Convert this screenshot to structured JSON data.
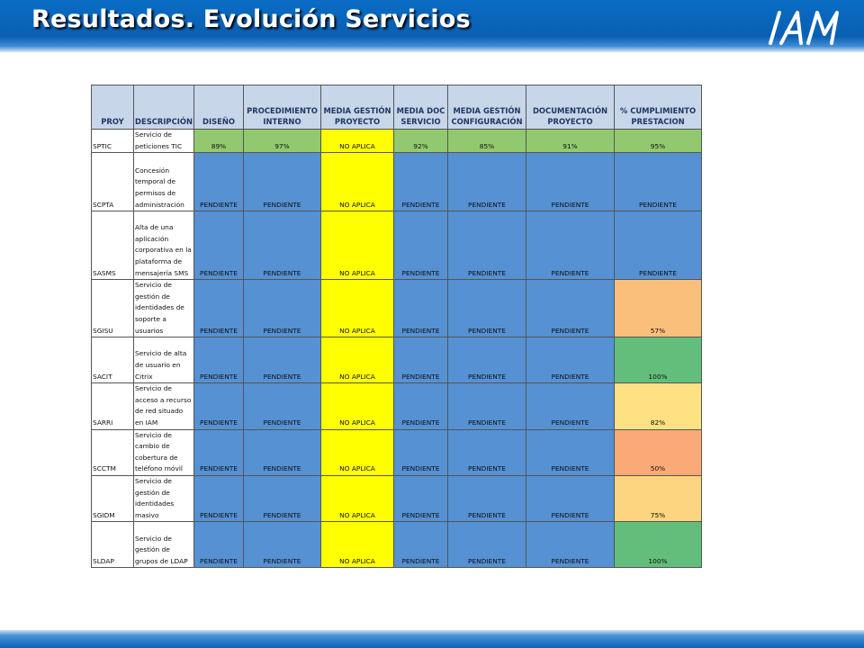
{
  "slide": {
    "title": "Resultados. Evolución Servicios",
    "logo_text": "IAM"
  },
  "table": {
    "headers": [
      "PROY",
      "DESCRIPCIÓN",
      "DISEÑO",
      "PROCEDIMIENTO INTERNO",
      "MEDIA GESTIÓN PROYECTO",
      "MEDIA DOC SERVICIO",
      "MEDIA GESTIÓN CONFIGURACIÓN",
      "DOCUMENTACIÓN PROYECTO",
      "% CUMPLIMIENTO PRESTACION"
    ],
    "rows": [
      {
        "proy": "SPTIC",
        "desc": "Servicio de peticiones TIC",
        "values": [
          "89%",
          "97%",
          "NO APLICA",
          "92%",
          "85%",
          "91%",
          "95%"
        ],
        "colors": [
          "#92c970",
          "#92c970",
          "#ffff00",
          "#92c970",
          "#92c970",
          "#92c970",
          "#92c970"
        ]
      },
      {
        "proy": "SCPTA",
        "desc": "Concesión temporal de permisos de administración",
        "values": [
          "PENDIENTE",
          "PENDIENTE",
          "NO APLICA",
          "PENDIENTE",
          "PENDIENTE",
          "PENDIENTE",
          "PENDIENTE"
        ],
        "colors": [
          "#5591d3",
          "#5591d3",
          "#ffff00",
          "#5591d3",
          "#5591d3",
          "#5591d3",
          "#5591d3"
        ]
      },
      {
        "proy": "SASMS",
        "desc": "Alta de una aplicación corporativa en la plataforma de mensajería SMS",
        "values": [
          "PENDIENTE",
          "PENDIENTE",
          "NO APLICA",
          "PENDIENTE",
          "PENDIENTE",
          "PENDIENTE",
          "PENDIENTE"
        ],
        "colors": [
          "#5591d3",
          "#5591d3",
          "#ffff00",
          "#5591d3",
          "#5591d3",
          "#5591d3",
          "#5591d3"
        ]
      },
      {
        "proy": "SGISU",
        "desc": "Servicio de gestión de identidades de soporte a usuarios",
        "values": [
          "PENDIENTE",
          "PENDIENTE",
          "NO APLICA",
          "PENDIENTE",
          "PENDIENTE",
          "PENDIENTE",
          "57%"
        ],
        "colors": [
          "#5591d3",
          "#5591d3",
          "#ffff00",
          "#5591d3",
          "#5591d3",
          "#5591d3",
          "#fbbf7c"
        ]
      },
      {
        "proy": "SACIT",
        "desc": "Servicio de alta de usuario en Citrix",
        "values": [
          "PENDIENTE",
          "PENDIENTE",
          "NO APLICA",
          "PENDIENTE",
          "PENDIENTE",
          "PENDIENTE",
          "100%"
        ],
        "colors": [
          "#5591d3",
          "#5591d3",
          "#ffff00",
          "#5591d3",
          "#5591d3",
          "#5591d3",
          "#63be7b"
        ]
      },
      {
        "proy": "SARRI",
        "desc": "Servicio de acceso a recurso de red situado en IAM",
        "values": [
          "PENDIENTE",
          "PENDIENTE",
          "NO APLICA",
          "PENDIENTE",
          "PENDIENTE",
          "PENDIENTE",
          "82%"
        ],
        "colors": [
          "#5591d3",
          "#5591d3",
          "#ffff00",
          "#5591d3",
          "#5591d3",
          "#5591d3",
          "#fee182"
        ]
      },
      {
        "proy": "SCCTM",
        "desc": "Servicio de cambio de cobertura de teléfono móvil",
        "values": [
          "PENDIENTE",
          "PENDIENTE",
          "NO APLICA",
          "PENDIENTE",
          "PENDIENTE",
          "PENDIENTE",
          "50%"
        ],
        "colors": [
          "#5591d3",
          "#5591d3",
          "#ffff00",
          "#5591d3",
          "#5591d3",
          "#5591d3",
          "#fbaa77"
        ]
      },
      {
        "proy": "SGIDM",
        "desc": "Servicio de gestión de identidades masivo",
        "values": [
          "PENDIENTE",
          "PENDIENTE",
          "NO APLICA",
          "PENDIENTE",
          "PENDIENTE",
          "PENDIENTE",
          "75%"
        ],
        "colors": [
          "#5591d3",
          "#5591d3",
          "#ffff00",
          "#5591d3",
          "#5591d3",
          "#5591d3",
          "#fdd47f"
        ]
      },
      {
        "proy": "SLDAP",
        "desc": "Servicio de gestión de grupos de LDAP",
        "values": [
          "PENDIENTE",
          "PENDIENTE",
          "NO APLICA",
          "PENDIENTE",
          "PENDIENTE",
          "PENDIENTE",
          "100%"
        ],
        "colors": [
          "#5591d3",
          "#5591d3",
          "#ffff00",
          "#5591d3",
          "#5591d3",
          "#5591d3",
          "#63be7b"
        ]
      }
    ]
  }
}
